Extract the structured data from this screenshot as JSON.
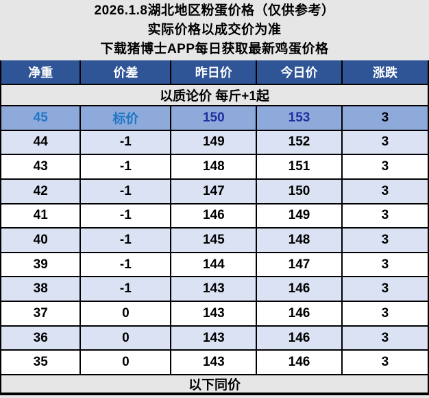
{
  "banner": {
    "line1": "2026.1.8湖北地区粉蛋价格（仅供参考）",
    "line2": "实际价格以成交价为准",
    "line3": "下载猪博士APP每日获取最新鸡蛋价格"
  },
  "table": {
    "columns": [
      "净重",
      "价差",
      "昨日价",
      "今日价",
      "涨跌"
    ],
    "note": "以质论价 每斤+1起",
    "rows": [
      {
        "cells": [
          "45",
          "标价",
          "150",
          "153",
          "3"
        ],
        "highlight": true
      },
      {
        "cells": [
          "44",
          "-1",
          "149",
          "152",
          "3"
        ],
        "highlight": false
      },
      {
        "cells": [
          "43",
          "-1",
          "148",
          "151",
          "3"
        ],
        "highlight": false
      },
      {
        "cells": [
          "42",
          "-1",
          "147",
          "150",
          "3"
        ],
        "highlight": false
      },
      {
        "cells": [
          "41",
          "-1",
          "146",
          "149",
          "3"
        ],
        "highlight": false
      },
      {
        "cells": [
          "40",
          "-1",
          "145",
          "148",
          "3"
        ],
        "highlight": false
      },
      {
        "cells": [
          "39",
          "-1",
          "144",
          "147",
          "3"
        ],
        "highlight": false
      },
      {
        "cells": [
          "38",
          "-1",
          "143",
          "146",
          "3"
        ],
        "highlight": false
      },
      {
        "cells": [
          "37",
          "0",
          "143",
          "146",
          "3"
        ],
        "highlight": false
      },
      {
        "cells": [
          "36",
          "0",
          "143",
          "146",
          "3"
        ],
        "highlight": false
      },
      {
        "cells": [
          "35",
          "0",
          "143",
          "146",
          "3"
        ],
        "highlight": false
      }
    ],
    "footer": "以下同价"
  },
  "colors": {
    "banner_bg": "#e6e6e6",
    "header_bg": "#2f5597",
    "header_text": "#ffffff",
    "highlight_row_bg": "#8eaadb",
    "highlight_label_text": "#2176c4",
    "highlight_price_text": "#202f9e",
    "alt_row_bg": "#dbe2f3",
    "row_bg": "#ffffff",
    "grid_line": "#000000",
    "body_text": "#000000"
  }
}
